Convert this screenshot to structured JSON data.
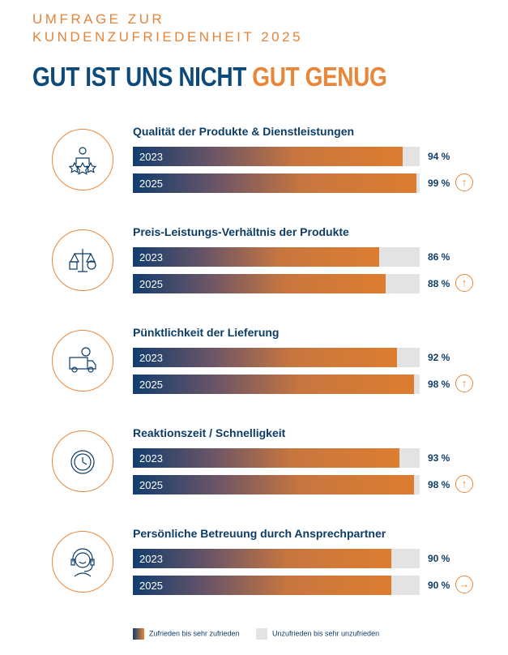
{
  "header": {
    "subtitle_line1": "UMFRAGE ZUR",
    "subtitle_line2": "KUNDENZUFRIEDENHEIT 2025",
    "title_part1": "GUT IST UNS NICHT ",
    "title_part2": "GUT GENUG"
  },
  "colors": {
    "orange": "#e8873a",
    "navy": "#0d4a7a",
    "unsatisfied": "#e3e3e3"
  },
  "chart_data": {
    "type": "bar",
    "orientation": "horizontal",
    "xlim": [
      0,
      100
    ],
    "legend": [
      {
        "label": "Zufrieden bis sehr zufrieden",
        "color": "gradient #123d6e→#dc7d30"
      },
      {
        "label": "Unzufrieden bis sehr unzufrieden",
        "color": "#e3e3e3"
      }
    ],
    "legend_placement": "bottom",
    "categories": [
      {
        "title": "Qualität der Produkte & Dienstleistungen",
        "icon": "person-stars-icon",
        "bars": [
          {
            "year": "2023",
            "value": 94,
            "label": "94 %"
          },
          {
            "year": "2025",
            "value": 99,
            "label": "99 %"
          }
        ],
        "trend": "up",
        "trend_glyph": "↑"
      },
      {
        "title": "Preis-Leistungs-Verhältnis der Produkte",
        "icon": "scale-icon",
        "bars": [
          {
            "year": "2023",
            "value": 86,
            "label": "86 %"
          },
          {
            "year": "2025",
            "value": 88,
            "label": "88 %"
          }
        ],
        "trend": "up",
        "trend_glyph": "↑"
      },
      {
        "title": "Pünktlichkeit der Lieferung",
        "icon": "delivery-truck-icon",
        "bars": [
          {
            "year": "2023",
            "value": 92,
            "label": "92 %"
          },
          {
            "year": "2025",
            "value": 98,
            "label": "98 %"
          }
        ],
        "trend": "up",
        "trend_glyph": "↑"
      },
      {
        "title": "Reaktionszeit / Schnelligkeit",
        "icon": "stopwatch-icon",
        "bars": [
          {
            "year": "2023",
            "value": 93,
            "label": "93 %"
          },
          {
            "year": "2025",
            "value": 98,
            "label": "98 %"
          }
        ],
        "trend": "up",
        "trend_glyph": "↑"
      },
      {
        "title": "Persönliche Betreuung durch Ansprechpartner",
        "icon": "headset-icon",
        "bars": [
          {
            "year": "2023",
            "value": 90,
            "label": "90 %"
          },
          {
            "year": "2025",
            "value": 90,
            "label": "90 %"
          }
        ],
        "trend": "flat",
        "trend_glyph": "→"
      }
    ]
  }
}
